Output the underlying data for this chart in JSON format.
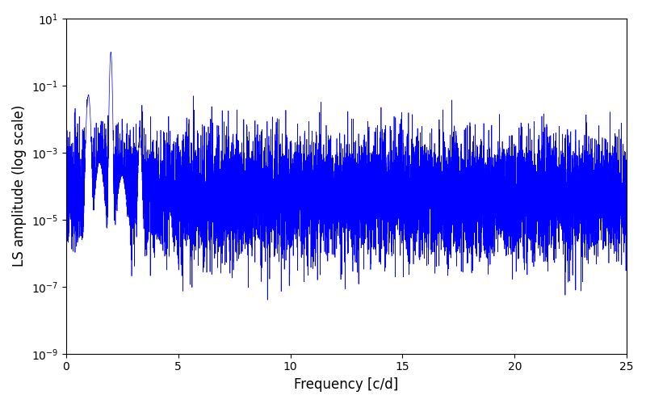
{
  "title": "",
  "xlabel": "Frequency [c/d]",
  "ylabel": "LS amplitude (log scale)",
  "xlim": [
    0,
    25
  ],
  "ylim_log": [
    1e-09,
    10
  ],
  "line_color": "#0000FF",
  "line_width": 0.5,
  "figsize": [
    8.0,
    5.0
  ],
  "dpi": 100,
  "seed": 137,
  "n_points": 10000,
  "freq_max": 25.0,
  "peak_freq": 2.0,
  "peak_amplitude": 1.0,
  "secondary_peak_freq": 1.0,
  "secondary_peak_amplitude": 0.05,
  "background_color": "#ffffff"
}
